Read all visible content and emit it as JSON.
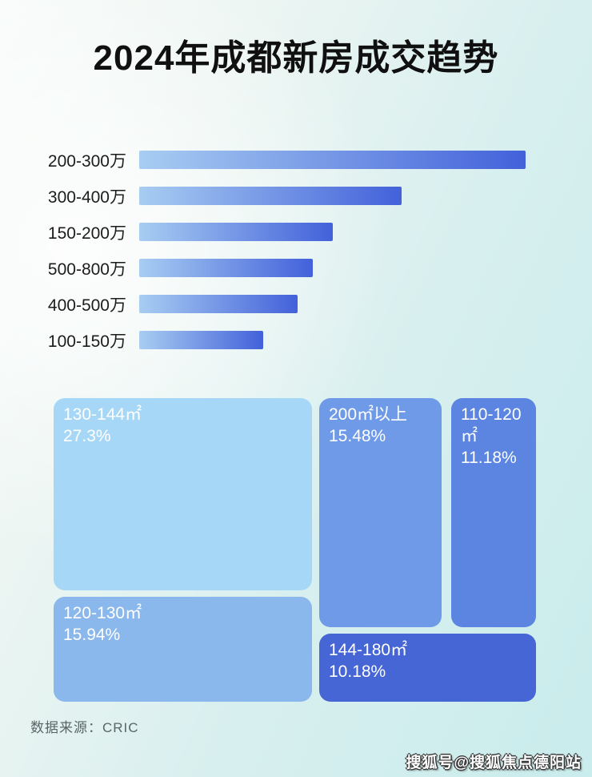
{
  "title": "2024年成都新房成交趋势",
  "source": "数据来源：CRIC",
  "watermark": "搜狐号@搜狐焦点德阳站",
  "colors": {
    "bar_gradient_from": "#a8cdf2",
    "bar_gradient_to": "#4361da",
    "title_text": "#101010",
    "bar_label_text": "#1c1c1c",
    "treemap_text": "#ffffff",
    "source_text": "#5a6568"
  },
  "chart_data": [
    {
      "type": "bar",
      "orientation": "horizontal",
      "categories": [
        "200-300万",
        "300-400万",
        "150-200万",
        "500-800万",
        "400-500万",
        "100-150万"
      ],
      "values": [
        100,
        68,
        50,
        45,
        41,
        32
      ],
      "value_note": "bars carry no numeric labels in image; values are relative widths as % of longest bar",
      "xlabel": "",
      "ylabel": "",
      "grid": false,
      "legend": false
    },
    {
      "type": "treemap",
      "items": [
        {
          "label": "130-144㎡",
          "pct": 27.3,
          "pct_label": "27.3%",
          "color": "#a7d7f7"
        },
        {
          "label": "200㎡以上",
          "pct": 15.48,
          "pct_label": "15.48%",
          "color": "#6f9ae8"
        },
        {
          "label": "110-120㎡",
          "pct": 11.18,
          "pct_label": "11.18%",
          "color": "#5b85e0"
        },
        {
          "label": "120-130㎡",
          "pct": 15.94,
          "pct_label": "15.94%",
          "color": "#8ab7ec"
        },
        {
          "label": "144-180㎡",
          "pct": 10.18,
          "pct_label": "10.18%",
          "color": "#4766d6"
        }
      ],
      "legend": false
    }
  ]
}
